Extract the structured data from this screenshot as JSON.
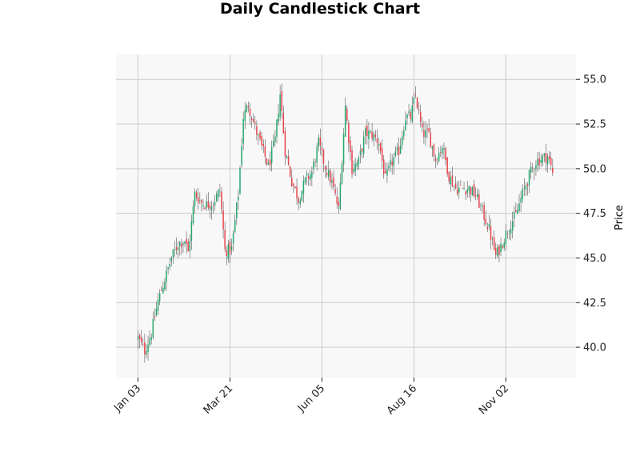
{
  "chart_data": {
    "type": "candlestick",
    "title": "Daily Candlestick Chart",
    "xlabel": "",
    "ylabel": "Price",
    "y_axis_side": "right",
    "ylim": [
      38.3,
      56.4
    ],
    "yticks": [
      40.0,
      42.5,
      45.0,
      47.5,
      50.0,
      52.5,
      55.0
    ],
    "ytick_labels": [
      "40.0",
      "42.5",
      "45.0",
      "47.5",
      "50.0",
      "52.5",
      "55.0"
    ],
    "xticks": [
      {
        "index": 0,
        "label": "Jan 03"
      },
      {
        "index": 55,
        "label": "Mar 21"
      },
      {
        "index": 110,
        "label": "Jun 05"
      },
      {
        "index": 165,
        "label": "Aug 16"
      },
      {
        "index": 220,
        "label": "Nov 02"
      }
    ],
    "grid": true,
    "colors": {
      "up": "#26a66e",
      "down": "#e8434d",
      "wick": "#555555",
      "plot_bg": "#f8f8f8",
      "grid": "#cccccc"
    },
    "close_anchors": [
      [
        0,
        40.5
      ],
      [
        4,
        39.8
      ],
      [
        8,
        40.8
      ],
      [
        12,
        42.6
      ],
      [
        16,
        43.8
      ],
      [
        20,
        45.0
      ],
      [
        24,
        45.8
      ],
      [
        28,
        46.0
      ],
      [
        30,
        45.3
      ],
      [
        34,
        48.6
      ],
      [
        38,
        48.1
      ],
      [
        41,
        48.0
      ],
      [
        45,
        48.1
      ],
      [
        49,
        48.8
      ],
      [
        52,
        45.4
      ],
      [
        56,
        45.5
      ],
      [
        60,
        48.6
      ],
      [
        63,
        52.9
      ],
      [
        66,
        53.6
      ],
      [
        70,
        52.3
      ],
      [
        74,
        51.2
      ],
      [
        78,
        50.1
      ],
      [
        82,
        51.6
      ],
      [
        85,
        54.2
      ],
      [
        88,
        51.0
      ],
      [
        92,
        49.3
      ],
      [
        96,
        48.3
      ],
      [
        100,
        49.3
      ],
      [
        104,
        49.8
      ],
      [
        108,
        51.4
      ],
      [
        112,
        50.1
      ],
      [
        116,
        49.2
      ],
      [
        120,
        47.7
      ],
      [
        124,
        53.5
      ],
      [
        128,
        50.0
      ],
      [
        132,
        50.4
      ],
      [
        136,
        52.0
      ],
      [
        140,
        51.9
      ],
      [
        144,
        51.5
      ],
      [
        148,
        49.4
      ],
      [
        152,
        50.4
      ],
      [
        156,
        51.0
      ],
      [
        160,
        52.9
      ],
      [
        163,
        52.9
      ],
      [
        166,
        54.1
      ],
      [
        170,
        52.0
      ],
      [
        174,
        51.9
      ],
      [
        178,
        50.5
      ],
      [
        182,
        51.3
      ],
      [
        186,
        49.6
      ],
      [
        190,
        48.9
      ],
      [
        194,
        48.9
      ],
      [
        198,
        48.9
      ],
      [
        202,
        48.5
      ],
      [
        206,
        47.6
      ],
      [
        210,
        46.6
      ],
      [
        214,
        45.1
      ],
      [
        218,
        45.9
      ],
      [
        222,
        46.8
      ],
      [
        226,
        47.4
      ],
      [
        230,
        48.6
      ],
      [
        234,
        49.6
      ],
      [
        238,
        50.4
      ],
      [
        242,
        50.6
      ],
      [
        245,
        50.7
      ],
      [
        248,
        49.8
      ]
    ]
  }
}
